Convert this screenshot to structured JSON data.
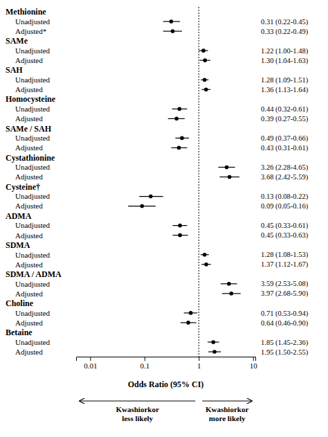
{
  "chart_data": {
    "type": "forest",
    "xlabel": "Odds  Ratio (95% CI)",
    "log": "x",
    "xlim": [
      0.0055,
      11.0
    ],
    "xticks": [
      0.01,
      0.1,
      1,
      10
    ],
    "reference_line": 1,
    "color": "#000000",
    "annotations": [
      "Kwashiorkor\nless likely",
      "Kwashiorkor\nmore likely"
    ],
    "groups": [
      {
        "name": "Methionine",
        "categories": [
          "Unadjusted",
          "Adjusted*"
        ],
        "values": [
          0.31,
          0.33
        ],
        "lo": [
          0.22,
          0.22
        ],
        "hi": [
          0.45,
          0.49
        ],
        "value_labels": [
          "0.31 (0.22-0.45)",
          "0.33 (0.22-0.49)"
        ]
      },
      {
        "name": "SAMe",
        "categories": [
          "Unadjusted",
          "Adjusted"
        ],
        "values": [
          1.22,
          1.3
        ],
        "lo": [
          1.0,
          1.04
        ],
        "hi": [
          1.48,
          1.63
        ],
        "value_labels": [
          "1.22 (1.00-1.48)",
          "1.30 (1.04-1.63)"
        ]
      },
      {
        "name": "SAH",
        "categories": [
          "Unadjusted",
          "Adjusted"
        ],
        "values": [
          1.28,
          1.36
        ],
        "lo": [
          1.09,
          1.13
        ],
        "hi": [
          1.51,
          1.64
        ],
        "value_labels": [
          "1.28 (1.09-1.51)",
          "1.36 (1.13-1.64)"
        ]
      },
      {
        "name": "Homocysteine",
        "categories": [
          "Unadjusted",
          "Adjusted"
        ],
        "values": [
          0.44,
          0.39
        ],
        "lo": [
          0.32,
          0.27
        ],
        "hi": [
          0.61,
          0.55
        ],
        "value_labels": [
          "0.44 (0.32-0.61)",
          "0.39 (0.27-0.55)"
        ]
      },
      {
        "name": "SAMe / SAH",
        "categories": [
          "Unadjusted",
          "Adjusted"
        ],
        "values": [
          0.49,
          0.43
        ],
        "lo": [
          0.37,
          0.31
        ],
        "hi": [
          0.66,
          0.61
        ],
        "value_labels": [
          "0.49 (0.37-0.66)",
          "0.43 (0.31-0.61)"
        ]
      },
      {
        "name": "Cystathionine",
        "categories": [
          "Unadjusted",
          "Adjusted"
        ],
        "values": [
          3.26,
          3.68
        ],
        "lo": [
          2.28,
          2.42
        ],
        "hi": [
          4.65,
          5.59
        ],
        "value_labels": [
          "3.26 (2.28-4.65)",
          "3.68 (2.42-5.59)"
        ]
      },
      {
        "name": "Cysteine†",
        "categories": [
          "Unadjusted",
          "Adjusted"
        ],
        "values": [
          0.13,
          0.09
        ],
        "lo": [
          0.08,
          0.05
        ],
        "hi": [
          0.22,
          0.16
        ],
        "value_labels": [
          "0.13 (0.08-0.22)",
          "0.09 (0.05-0.16)"
        ]
      },
      {
        "name": "ADMA",
        "categories": [
          "Unadjusted",
          "Adjusted"
        ],
        "values": [
          0.45,
          0.45
        ],
        "lo": [
          0.33,
          0.33
        ],
        "hi": [
          0.61,
          0.63
        ],
        "value_labels": [
          "0.45 (0.33-0.61)",
          "0.45 (0.33-0.63)"
        ]
      },
      {
        "name": "SDMA",
        "categories": [
          "Unadjusted",
          "Adjusted"
        ],
        "values": [
          1.28,
          1.37
        ],
        "lo": [
          1.08,
          1.12
        ],
        "hi": [
          1.53,
          1.67
        ],
        "value_labels": [
          "1.28 (1.08-1.53)",
          "1.37 (1.12-1.67)"
        ]
      },
      {
        "name": "SDMA / ADMA",
        "categories": [
          "Unadjusted",
          "Adjusted"
        ],
        "values": [
          3.59,
          3.97
        ],
        "lo": [
          2.53,
          2.68
        ],
        "hi": [
          5.08,
          5.9
        ],
        "value_labels": [
          "3.59 (2.53-5.08)",
          "3.97 (2.68-5.90)"
        ]
      },
      {
        "name": "Choline",
        "categories": [
          "Unadjusted",
          "Adjusted"
        ],
        "values": [
          0.71,
          0.64
        ],
        "lo": [
          0.53,
          0.46
        ],
        "hi": [
          0.94,
          0.9
        ],
        "value_labels": [
          "0.71 (0.53-0.94)",
          "0.64 (0.46-0.90)"
        ]
      },
      {
        "name": "Betaine",
        "categories": [
          "Unadjusted",
          "Adjusted"
        ],
        "values": [
          1.85,
          1.95
        ],
        "lo": [
          1.45,
          1.5
        ],
        "hi": [
          2.36,
          2.55
        ],
        "value_labels": [
          "1.85 (1.45-2.36)",
          "1.95 (1.50-2.55)"
        ]
      }
    ]
  }
}
